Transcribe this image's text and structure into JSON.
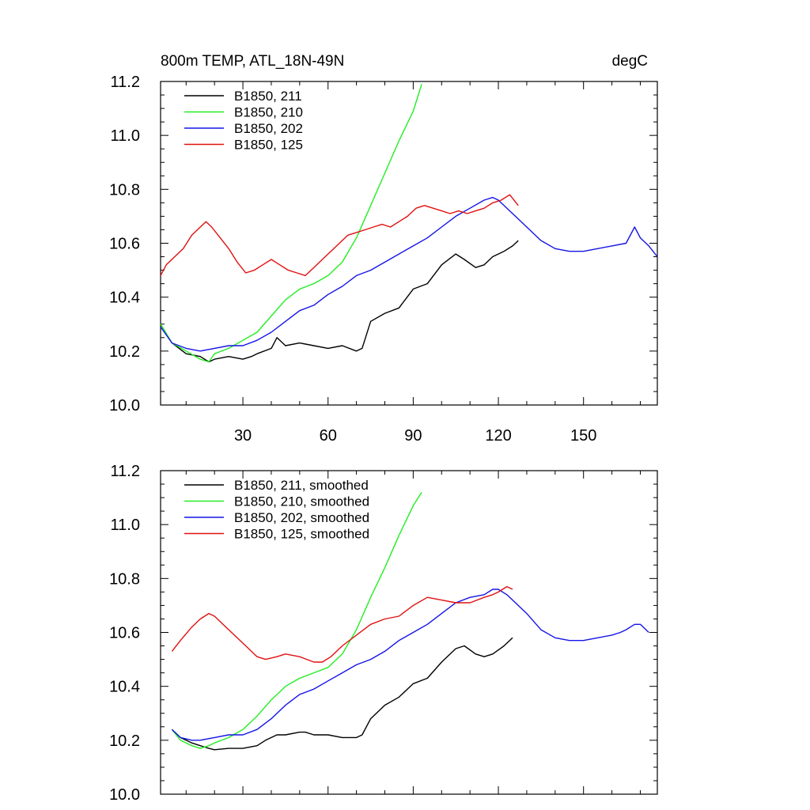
{
  "figure": {
    "title_left": "800m TEMP, ATL_18N-49N",
    "title_right": "degC"
  },
  "colors": {
    "black": "#000000",
    "green": "#22ee22",
    "blue": "#1414e6",
    "red": "#e01010"
  },
  "chart_data": [
    {
      "type": "line",
      "title": "800m TEMP, ATL_18N-49N",
      "units": "degC",
      "xlim": [
        1,
        176
      ],
      "ylim": [
        10.0,
        11.2
      ],
      "xticks": [
        30,
        60,
        90,
        120,
        150
      ],
      "yticks": [
        10.0,
        10.2,
        10.4,
        10.6,
        10.8,
        11.0,
        11.2
      ],
      "ytick_labels": [
        "10.0",
        "10.2",
        "10.4",
        "10.6",
        "10.8",
        "11.0",
        "11.2"
      ],
      "legend_position": "top-left",
      "series": [
        {
          "name": "B1850, 211",
          "color": "#000000",
          "x": [
            1,
            5,
            10,
            15,
            18,
            20,
            25,
            30,
            33,
            35,
            40,
            42,
            45,
            50,
            55,
            60,
            65,
            70,
            72,
            75,
            80,
            85,
            90,
            95,
            100,
            105,
            108,
            112,
            115,
            118,
            122,
            125,
            127
          ],
          "y": [
            10.3,
            10.23,
            10.19,
            10.18,
            10.16,
            10.17,
            10.18,
            10.17,
            10.18,
            10.19,
            10.21,
            10.25,
            10.22,
            10.23,
            10.22,
            10.21,
            10.22,
            10.2,
            10.21,
            10.31,
            10.34,
            10.36,
            10.43,
            10.45,
            10.52,
            10.56,
            10.54,
            10.51,
            10.52,
            10.55,
            10.57,
            10.59,
            10.61
          ]
        },
        {
          "name": "B1850, 210",
          "color": "#22ee22",
          "x": [
            1,
            5,
            10,
            15,
            18,
            20,
            25,
            30,
            35,
            40,
            45,
            50,
            55,
            60,
            65,
            70,
            75,
            80,
            85,
            90,
            93
          ],
          "y": [
            10.3,
            10.23,
            10.2,
            10.17,
            10.16,
            10.19,
            10.21,
            10.24,
            10.27,
            10.33,
            10.39,
            10.43,
            10.45,
            10.48,
            10.53,
            10.62,
            10.74,
            10.86,
            10.98,
            11.09,
            11.19
          ]
        },
        {
          "name": "B1850, 202",
          "color": "#1414e6",
          "x": [
            1,
            5,
            10,
            15,
            20,
            25,
            30,
            35,
            40,
            45,
            50,
            55,
            60,
            65,
            70,
            75,
            80,
            85,
            90,
            95,
            100,
            105,
            110,
            115,
            118,
            120,
            123,
            126,
            130,
            135,
            140,
            145,
            150,
            155,
            160,
            165,
            168,
            170,
            173,
            176
          ],
          "y": [
            10.29,
            10.23,
            10.21,
            10.2,
            10.21,
            10.22,
            10.22,
            10.24,
            10.27,
            10.31,
            10.35,
            10.37,
            10.41,
            10.44,
            10.48,
            10.5,
            10.53,
            10.56,
            10.59,
            10.62,
            10.66,
            10.7,
            10.73,
            10.76,
            10.77,
            10.76,
            10.73,
            10.7,
            10.66,
            10.61,
            10.58,
            10.57,
            10.57,
            10.58,
            10.59,
            10.6,
            10.66,
            10.62,
            10.59,
            10.55
          ]
        },
        {
          "name": "B1850, 125",
          "color": "#e01010",
          "x": [
            1,
            3,
            6,
            9,
            12,
            15,
            17,
            19,
            22,
            25,
            28,
            31,
            34,
            37,
            40,
            43,
            46,
            49,
            52,
            55,
            58,
            61,
            64,
            67,
            70,
            73,
            76,
            79,
            82,
            85,
            88,
            91,
            94,
            97,
            100,
            103,
            106,
            109,
            112,
            115,
            118,
            121,
            124,
            127
          ],
          "y": [
            10.48,
            10.52,
            10.55,
            10.58,
            10.63,
            10.66,
            10.68,
            10.66,
            10.62,
            10.58,
            10.53,
            10.49,
            10.5,
            10.52,
            10.54,
            10.52,
            10.5,
            10.49,
            10.48,
            10.51,
            10.54,
            10.57,
            10.6,
            10.63,
            10.64,
            10.65,
            10.66,
            10.67,
            10.66,
            10.68,
            10.7,
            10.73,
            10.74,
            10.73,
            10.72,
            10.71,
            10.72,
            10.71,
            10.72,
            10.73,
            10.75,
            10.76,
            10.78,
            10.74
          ]
        }
      ]
    },
    {
      "type": "line",
      "xlim": [
        1,
        176
      ],
      "ylim": [
        10.0,
        11.2
      ],
      "xticks": [
        30,
        60,
        90,
        120,
        150
      ],
      "yticks": [
        10.0,
        10.2,
        10.4,
        10.6,
        10.8,
        11.0,
        11.2
      ],
      "ytick_labels": [
        "10.0",
        "10.2",
        "10.4",
        "10.6",
        "10.8",
        "11.0",
        "11.2"
      ],
      "legend_position": "top-left",
      "series": [
        {
          "name": "B1850, 211, smoothed",
          "color": "#000000",
          "x": [
            5,
            8,
            12,
            15,
            18,
            20,
            25,
            30,
            35,
            38,
            42,
            45,
            50,
            52,
            55,
            60,
            65,
            70,
            72,
            75,
            80,
            85,
            90,
            95,
            100,
            105,
            108,
            112,
            115,
            118,
            122,
            125
          ],
          "y": [
            10.24,
            10.21,
            10.19,
            10.18,
            10.17,
            10.165,
            10.17,
            10.17,
            10.18,
            10.2,
            10.22,
            10.22,
            10.23,
            10.23,
            10.22,
            10.22,
            10.21,
            10.21,
            10.22,
            10.28,
            10.33,
            10.36,
            10.41,
            10.43,
            10.49,
            10.54,
            10.55,
            10.52,
            10.51,
            10.52,
            10.55,
            10.58
          ]
        },
        {
          "name": "B1850, 210, smoothed",
          "color": "#22ee22",
          "x": [
            5,
            8,
            12,
            15,
            18,
            20,
            25,
            30,
            35,
            40,
            45,
            50,
            55,
            60,
            65,
            70,
            75,
            80,
            85,
            90,
            93
          ],
          "y": [
            10.24,
            10.2,
            10.18,
            10.17,
            10.18,
            10.19,
            10.21,
            10.24,
            10.29,
            10.35,
            10.4,
            10.43,
            10.45,
            10.47,
            10.52,
            10.61,
            10.73,
            10.84,
            10.96,
            11.07,
            11.12
          ]
        },
        {
          "name": "B1850, 202, smoothed",
          "color": "#1414e6",
          "x": [
            5,
            8,
            12,
            15,
            20,
            25,
            30,
            35,
            40,
            45,
            50,
            55,
            60,
            65,
            70,
            75,
            80,
            85,
            90,
            95,
            100,
            105,
            110,
            115,
            118,
            120,
            123,
            126,
            130,
            135,
            140,
            145,
            150,
            155,
            160,
            163,
            165,
            168,
            170,
            173
          ],
          "y": [
            10.24,
            10.21,
            10.2,
            10.2,
            10.21,
            10.22,
            10.22,
            10.24,
            10.28,
            10.33,
            10.37,
            10.39,
            10.42,
            10.45,
            10.48,
            10.5,
            10.53,
            10.57,
            10.6,
            10.63,
            10.67,
            10.71,
            10.73,
            10.74,
            10.76,
            10.76,
            10.74,
            10.71,
            10.67,
            10.61,
            10.58,
            10.57,
            10.57,
            10.58,
            10.59,
            10.6,
            10.61,
            10.63,
            10.63,
            10.6
          ]
        },
        {
          "name": "B1850, 125, smoothed",
          "color": "#e01010",
          "x": [
            5,
            8,
            12,
            15,
            18,
            20,
            25,
            30,
            35,
            38,
            42,
            45,
            50,
            55,
            58,
            61,
            65,
            70,
            75,
            80,
            85,
            90,
            95,
            100,
            105,
            110,
            115,
            118,
            120,
            123,
            125
          ],
          "y": [
            10.53,
            10.57,
            10.62,
            10.65,
            10.67,
            10.66,
            10.61,
            10.56,
            10.51,
            10.5,
            10.51,
            10.52,
            10.51,
            10.49,
            10.49,
            10.51,
            10.55,
            10.59,
            10.63,
            10.65,
            10.66,
            10.7,
            10.73,
            10.72,
            10.71,
            10.71,
            10.73,
            10.74,
            10.75,
            10.77,
            10.76
          ]
        }
      ]
    }
  ]
}
